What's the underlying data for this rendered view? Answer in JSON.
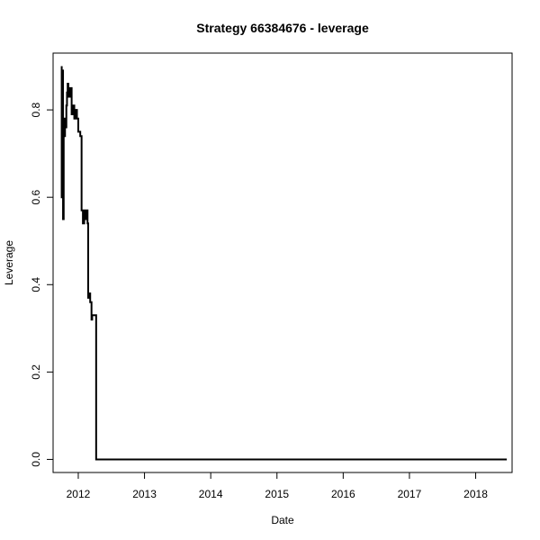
{
  "chart_data": {
    "type": "line",
    "title": "Strategy 66384676 - leverage",
    "xlabel": "Date",
    "ylabel": "Leverage",
    "xlim": [
      2011.62,
      2018.55
    ],
    "ylim": [
      -0.03,
      0.93
    ],
    "x_ticks": [
      2012,
      2013,
      2014,
      2015,
      2016,
      2017,
      2018
    ],
    "x_tick_labels": [
      "2012",
      "2013",
      "2014",
      "2015",
      "2016",
      "2017",
      "2018"
    ],
    "y_ticks": [
      0.0,
      0.2,
      0.4,
      0.6,
      0.8
    ],
    "y_tick_labels": [
      "0.0",
      "0.2",
      "0.4",
      "0.6",
      "0.8"
    ],
    "grid": false,
    "legend": "none",
    "series": [
      {
        "color": "#000000",
        "x": [
          2011.75,
          2011.75,
          2011.76,
          2011.76,
          2011.77,
          2011.77,
          2011.78,
          2011.78,
          2011.79,
          2011.79,
          2011.8,
          2011.8,
          2011.81,
          2011.81,
          2011.82,
          2011.82,
          2011.83,
          2011.83,
          2011.84,
          2011.84,
          2011.85,
          2011.85,
          2011.86,
          2011.86,
          2011.87,
          2011.87,
          2011.88,
          2011.88,
          2011.9,
          2011.9,
          2011.92,
          2011.92,
          2011.94,
          2011.94,
          2011.96,
          2011.96,
          2011.98,
          2011.98,
          2012.0,
          2012.0,
          2012.03,
          2012.03,
          2012.05,
          2012.05,
          2012.07,
          2012.07,
          2012.09,
          2012.09,
          2012.1,
          2012.1,
          2012.12,
          2012.12,
          2012.14,
          2012.14,
          2012.15,
          2012.15,
          2012.17,
          2012.17,
          2012.18,
          2012.18,
          2012.2,
          2012.2,
          2012.21,
          2012.21,
          2012.24,
          2012.24,
          2012.27,
          2012.27,
          2018.47
        ],
        "y": [
          0.9,
          0.6,
          0.6,
          0.89,
          0.89,
          0.55,
          0.55,
          0.78,
          0.78,
          0.74,
          0.74,
          0.78,
          0.78,
          0.76,
          0.76,
          0.81,
          0.81,
          0.84,
          0.84,
          0.86,
          0.86,
          0.83,
          0.83,
          0.85,
          0.85,
          0.83,
          0.83,
          0.85,
          0.85,
          0.79,
          0.79,
          0.81,
          0.81,
          0.78,
          0.78,
          0.8,
          0.8,
          0.78,
          0.78,
          0.75,
          0.75,
          0.74,
          0.74,
          0.57,
          0.57,
          0.54,
          0.54,
          0.57,
          0.57,
          0.55,
          0.55,
          0.57,
          0.57,
          0.54,
          0.54,
          0.37,
          0.37,
          0.38,
          0.38,
          0.36,
          0.36,
          0.32,
          0.32,
          0.33,
          0.33,
          0.33,
          0.33,
          0.0,
          0.0
        ]
      }
    ]
  }
}
